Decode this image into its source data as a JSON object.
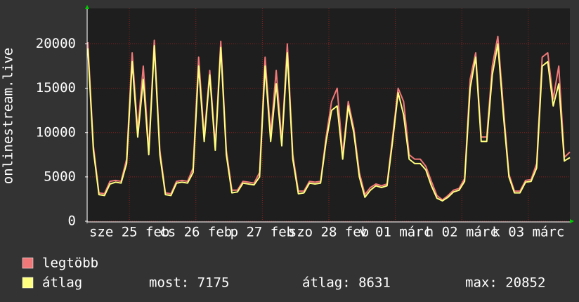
{
  "chart_data": {
    "type": "line",
    "y_label": "onlinestream.live",
    "xlim": [
      0,
      174
    ],
    "ylim": [
      0,
      24000
    ],
    "yticks": [
      0,
      5000,
      10000,
      15000,
      20000
    ],
    "xticks": [
      {
        "value": 15,
        "label": "sze 25 feb"
      },
      {
        "value": 39,
        "label": "cs 26 feb"
      },
      {
        "value": 63,
        "label": "p 27 feb"
      },
      {
        "value": 87,
        "label": "szo 28 feb"
      },
      {
        "value": 111,
        "label": "v 01 márc"
      },
      {
        "value": 135,
        "label": "h 02 márc"
      },
      {
        "value": 159,
        "label": "k 03 márc"
      }
    ],
    "grid": true,
    "x": [
      0,
      2,
      4,
      6,
      8,
      10,
      12,
      14,
      16,
      18,
      20,
      22,
      24,
      26,
      28,
      30,
      32,
      34,
      36,
      38,
      40,
      42,
      44,
      46,
      48,
      50,
      52,
      54,
      56,
      58,
      60,
      62,
      64,
      66,
      68,
      70,
      72,
      74,
      76,
      78,
      80,
      82,
      84,
      86,
      88,
      90,
      92,
      94,
      96,
      98,
      100,
      102,
      104,
      106,
      108,
      110,
      112,
      114,
      116,
      118,
      120,
      122,
      124,
      126,
      128,
      130,
      132,
      134,
      136,
      138,
      140,
      142,
      144,
      146,
      148,
      150,
      152,
      154,
      156,
      158,
      160,
      162,
      164,
      166,
      168,
      170,
      172,
      174
    ],
    "series": [
      {
        "name": "legtöbb",
        "color": "#f07878",
        "values": [
          20200,
          8500,
          3200,
          3100,
          4500,
          4600,
          4500,
          7000,
          19000,
          10200,
          17500,
          8000,
          20400,
          8000,
          3200,
          3100,
          4500,
          4600,
          4500,
          6000,
          18500,
          9500,
          17000,
          8500,
          20300,
          8000,
          3500,
          3500,
          4500,
          4400,
          4300,
          5500,
          18500,
          9800,
          17000,
          9000,
          20000,
          7500,
          3400,
          3400,
          4500,
          4400,
          4500,
          9500,
          13500,
          15000,
          7500,
          13500,
          10500,
          5500,
          3000,
          3800,
          4200,
          4000,
          4200,
          9500,
          15000,
          13500,
          7500,
          7000,
          7000,
          6200,
          4500,
          2900,
          2400,
          2900,
          3500,
          3700,
          4800,
          16000,
          19000,
          9500,
          9500,
          17500,
          20852,
          12800,
          5300,
          3400,
          3400,
          4600,
          4700,
          6500,
          18500,
          19000,
          13800,
          17500,
          7200,
          7800
        ]
      },
      {
        "name": "átlag",
        "color": "#ffff80",
        "values": [
          19500,
          8000,
          3000,
          2900,
          4200,
          4400,
          4300,
          6500,
          18000,
          9500,
          16000,
          7500,
          19800,
          7500,
          3000,
          2900,
          4300,
          4400,
          4300,
          5500,
          17500,
          9000,
          16500,
          8000,
          19600,
          7500,
          3200,
          3300,
          4300,
          4200,
          4100,
          5000,
          17500,
          9000,
          15500,
          8500,
          19000,
          7000,
          3100,
          3200,
          4300,
          4200,
          4300,
          9000,
          12500,
          13000,
          7000,
          13000,
          10000,
          5000,
          2700,
          3500,
          4000,
          3800,
          4000,
          9000,
          14500,
          12000,
          7000,
          6500,
          6500,
          5800,
          4000,
          2600,
          2300,
          2700,
          3300,
          3500,
          4500,
          15000,
          18500,
          9000,
          9000,
          16500,
          20000,
          12000,
          5000,
          3200,
          3200,
          4400,
          4500,
          6000,
          17500,
          18000,
          13000,
          15500,
          6800,
          7175
        ]
      }
    ],
    "stats": [
      "most: 7175",
      "átlag: 8631",
      "max: 20852"
    ]
  }
}
